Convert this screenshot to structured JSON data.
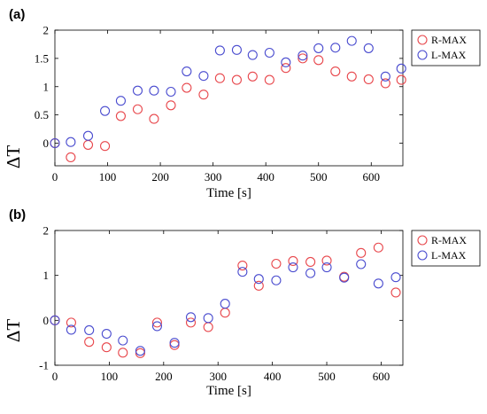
{
  "chart_data": [
    {
      "type": "scatter",
      "panel_label": "(a)",
      "xlabel": "Time [s]",
      "ylabel": "ΔT",
      "xlim": [
        0,
        660
      ],
      "ylim": [
        -0.4,
        2
      ],
      "xticks": [
        0,
        100,
        200,
        300,
        400,
        500,
        600
      ],
      "yticks": [
        0,
        0.5,
        1,
        1.5,
        2
      ],
      "ytick_labels": [
        "0",
        "0.5",
        "1",
        "1.5",
        "2"
      ],
      "legend": "top-right",
      "series": [
        {
          "name": "R-MAX",
          "color": "#e8474c",
          "x": [
            0,
            30,
            63,
            95,
            125,
            157,
            188,
            220,
            250,
            282,
            313,
            345,
            375,
            407,
            438,
            470,
            500,
            532,
            563,
            595,
            627,
            657
          ],
          "y": [
            0.0,
            -0.25,
            -0.03,
            -0.05,
            0.48,
            0.6,
            0.43,
            0.67,
            0.98,
            0.86,
            1.15,
            1.12,
            1.18,
            1.12,
            1.33,
            1.5,
            1.47,
            1.27,
            1.18,
            1.13,
            1.06,
            1.12
          ]
        },
        {
          "name": "L-MAX",
          "color": "#4a4ccf",
          "x": [
            0,
            30,
            63,
            95,
            125,
            157,
            188,
            220,
            250,
            282,
            313,
            345,
            375,
            407,
            438,
            470,
            500,
            532,
            563,
            595,
            627,
            657
          ],
          "y": [
            0.0,
            0.02,
            0.13,
            0.57,
            0.75,
            0.93,
            0.93,
            0.91,
            1.27,
            1.19,
            1.64,
            1.65,
            1.56,
            1.6,
            1.43,
            1.55,
            1.68,
            1.69,
            1.81,
            1.68,
            1.18,
            1.32
          ]
        }
      ]
    },
    {
      "type": "scatter",
      "panel_label": "(b)",
      "xlabel": "Time [s]",
      "ylabel": "ΔT",
      "xlim": [
        0,
        640
      ],
      "ylim": [
        -1,
        2
      ],
      "xticks": [
        0,
        100,
        200,
        300,
        400,
        500,
        600
      ],
      "yticks": [
        -1,
        0,
        1,
        2
      ],
      "ytick_labels": [
        "-1",
        "0",
        "1",
        "2"
      ],
      "legend": "top-right",
      "series": [
        {
          "name": "R-MAX",
          "color": "#e8474c",
          "x": [
            0,
            30,
            63,
            95,
            125,
            157,
            188,
            220,
            250,
            282,
            313,
            345,
            375,
            407,
            438,
            470,
            500,
            532,
            563,
            595,
            627
          ],
          "y": [
            0.0,
            -0.05,
            -0.48,
            -0.6,
            -0.72,
            -0.73,
            -0.05,
            -0.55,
            -0.05,
            -0.15,
            0.17,
            1.22,
            0.77,
            1.26,
            1.32,
            1.3,
            1.33,
            0.97,
            1.5,
            1.62,
            0.62
          ]
        },
        {
          "name": "L-MAX",
          "color": "#4a4ccf",
          "x": [
            0,
            30,
            63,
            95,
            125,
            157,
            188,
            220,
            250,
            282,
            313,
            345,
            375,
            407,
            438,
            470,
            500,
            532,
            563,
            595,
            627
          ],
          "y": [
            0.0,
            -0.21,
            -0.22,
            -0.3,
            -0.45,
            -0.68,
            -0.13,
            -0.5,
            0.07,
            0.05,
            0.37,
            1.08,
            0.92,
            0.89,
            1.18,
            1.05,
            1.18,
            0.95,
            1.25,
            0.82,
            0.96
          ]
        }
      ]
    }
  ]
}
